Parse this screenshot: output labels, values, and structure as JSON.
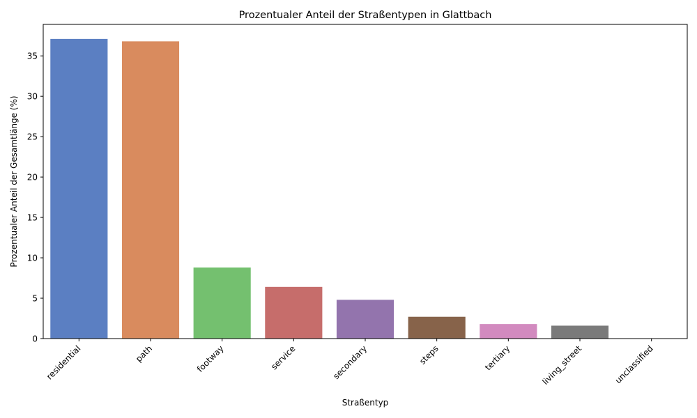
{
  "chart_data": {
    "type": "bar",
    "title": "Prozentualer Anteil der Straßentypen in Glattbach",
    "xlabel": "Straßentyp",
    "ylabel": "Prozentualer Anteil der Gesamtlänge (%)",
    "categories": [
      "residential",
      "path",
      "footway",
      "service",
      "secondary",
      "steps",
      "tertiary",
      "living_street",
      "unclassified"
    ],
    "values": [
      37.1,
      36.8,
      8.8,
      6.4,
      4.8,
      2.7,
      1.8,
      1.6,
      0.0
    ],
    "colors": [
      "#5b7fc2",
      "#d98b5e",
      "#74c06f",
      "#c66d6b",
      "#9374ad",
      "#87634a",
      "#d28abf",
      "#7a7a7a",
      "#c8b87a"
    ],
    "ylim": [
      0,
      38.9
    ],
    "yticks": [
      0,
      5,
      10,
      15,
      20,
      25,
      30,
      35
    ],
    "grid": false,
    "legend": "none"
  }
}
